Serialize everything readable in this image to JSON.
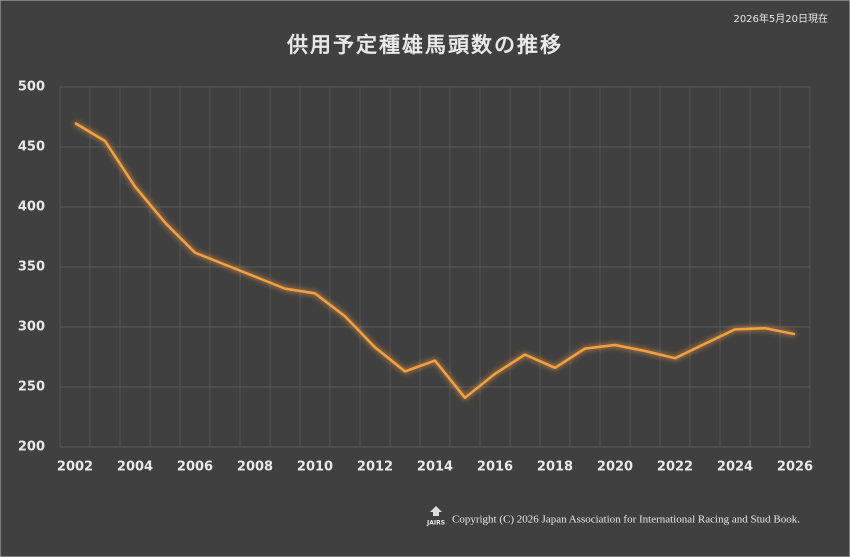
{
  "chart_data": {
    "type": "line",
    "title": "供用予定種雄馬頭数の推移",
    "subtitle": "2026年5月20日現在",
    "footer": "Copyright (C) 2026 Japan Association for International Racing and Stud Book.",
    "logo": "JAIRS",
    "categories": [
      "2002",
      null,
      "2004",
      null,
      "2006",
      null,
      "2008",
      null,
      "2010",
      null,
      "2012",
      null,
      "2014",
      null,
      "2016",
      null,
      "2018",
      null,
      "2020",
      null,
      "2022",
      null,
      "2024",
      null,
      "2026"
    ],
    "values": [
      470,
      455,
      417,
      387,
      362,
      352,
      342,
      332,
      328,
      309,
      283,
      263,
      272,
      241,
      261,
      277,
      266,
      282,
      285,
      280,
      274,
      286,
      298,
      299,
      294
    ],
    "color": "#f5a040",
    "ylim": [
      200,
      500
    ],
    "yticks": [
      200,
      250,
      300,
      350,
      400,
      450,
      500
    ],
    "grid": true
  }
}
